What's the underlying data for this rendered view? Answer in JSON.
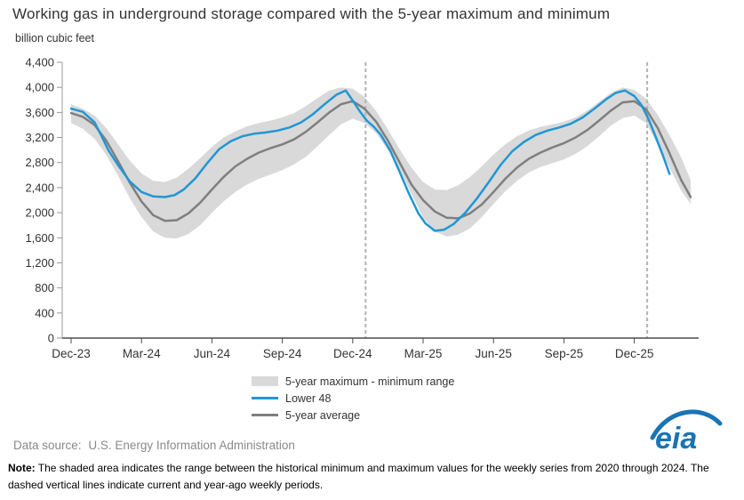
{
  "title": "Working gas in underground storage compared with the 5-year maximum and minimum",
  "unit_label": "billion cubic feet",
  "colors": {
    "lower48": "#2196d5",
    "average": "#7f7f7f",
    "band": "#d9d9d9",
    "dashed": "#b3b3b3",
    "axis_dark": "#4d4d4d",
    "axis_light": "#9a9a9a",
    "tick_text": "#333333",
    "logo_blue": "#1a74b4"
  },
  "chart_data": {
    "type": "area",
    "title": "Working gas in underground storage compared with the 5-year maximum and minimum",
    "xlabel": "",
    "ylabel": "billion cubic feet",
    "ylim": [
      0,
      4400
    ],
    "grid": false,
    "legend_position": "bottom",
    "x_axis": {
      "unit": "months since Dec-2023",
      "max_month": 26.4,
      "tick_months": [
        0,
        3,
        6,
        9,
        12,
        15,
        18,
        21,
        24
      ],
      "tick_labels": [
        "Dec-23",
        "Mar-24",
        "Jun-24",
        "Sep-24",
        "Dec-24",
        "Mar-25",
        "Jun-25",
        "Sep-25",
        "Dec-25"
      ]
    },
    "y_axis": {
      "tick_values": [
        0,
        400,
        800,
        1200,
        1600,
        2000,
        2400,
        2800,
        3200,
        3600,
        4000,
        4400
      ],
      "tick_labels": [
        "0",
        "400",
        "800",
        "1,200",
        "1,600",
        "2,000",
        "2,400",
        "2,800",
        "3,200",
        "3,600",
        "4,000",
        "4,400"
      ]
    },
    "dashed_vlines_months": [
      12.55,
      24.55
    ],
    "band": {
      "name": "5-year maximum - minimum range",
      "color": "#d9d9d9",
      "x": [
        0,
        0.5,
        1,
        1.5,
        2,
        2.5,
        3,
        3.5,
        4,
        4.5,
        5,
        5.5,
        6,
        6.5,
        7,
        7.5,
        8,
        8.5,
        9,
        9.5,
        10,
        10.5,
        11,
        11.5,
        12,
        12.5,
        13,
        13.5,
        14,
        14.5,
        15,
        15.5,
        16,
        16.5,
        17,
        17.5,
        18,
        18.5,
        19,
        19.5,
        20,
        20.5,
        21,
        21.5,
        22,
        22.5,
        23,
        23.5,
        24,
        24.5,
        25,
        25.5,
        26,
        26.4
      ],
      "max": [
        3730,
        3660,
        3550,
        3350,
        3090,
        2830,
        2630,
        2510,
        2490,
        2560,
        2700,
        2870,
        3050,
        3200,
        3300,
        3380,
        3430,
        3470,
        3520,
        3590,
        3700,
        3830,
        3950,
        4000,
        3980,
        3850,
        3620,
        3330,
        3010,
        2720,
        2490,
        2370,
        2360,
        2440,
        2570,
        2740,
        2930,
        3090,
        3220,
        3310,
        3370,
        3410,
        3450,
        3520,
        3630,
        3770,
        3910,
        4000,
        3960,
        3820,
        3560,
        3240,
        2880,
        2520
      ],
      "min": [
        3430,
        3340,
        3180,
        2920,
        2590,
        2230,
        1930,
        1700,
        1600,
        1590,
        1660,
        1800,
        2000,
        2180,
        2330,
        2450,
        2540,
        2610,
        2680,
        2770,
        2890,
        3060,
        3240,
        3410,
        3500,
        3430,
        3270,
        3000,
        2690,
        2300,
        1920,
        1700,
        1620,
        1650,
        1750,
        1930,
        2140,
        2340,
        2510,
        2640,
        2730,
        2790,
        2850,
        2940,
        3060,
        3220,
        3390,
        3510,
        3550,
        3430,
        3080,
        2720,
        2350,
        2140
      ]
    },
    "series": [
      {
        "name": "5-year average",
        "color": "#7f7f7f",
        "x": [
          0,
          0.5,
          1,
          1.5,
          2,
          2.5,
          3,
          3.5,
          4,
          4.5,
          5,
          5.5,
          6,
          6.5,
          7,
          7.5,
          8,
          8.5,
          9,
          9.5,
          10,
          10.5,
          11,
          11.5,
          12,
          12.5,
          13,
          13.5,
          14,
          14.5,
          15,
          15.5,
          16,
          16.5,
          17,
          17.5,
          18,
          18.5,
          19,
          19.5,
          20,
          20.5,
          21,
          21.5,
          22,
          22.5,
          23,
          23.5,
          24,
          24.5,
          25,
          25.5,
          26,
          26.4
        ],
        "values": [
          3590,
          3530,
          3400,
          3150,
          2820,
          2480,
          2180,
          1960,
          1870,
          1880,
          1990,
          2160,
          2370,
          2570,
          2740,
          2860,
          2960,
          3030,
          3090,
          3170,
          3290,
          3440,
          3600,
          3730,
          3780,
          3660,
          3450,
          3150,
          2800,
          2450,
          2200,
          2020,
          1920,
          1910,
          1990,
          2130,
          2330,
          2540,
          2720,
          2860,
          2960,
          3040,
          3110,
          3200,
          3320,
          3470,
          3630,
          3760,
          3780,
          3650,
          3350,
          2950,
          2520,
          2250
        ]
      },
      {
        "name": "Lower 48",
        "color": "#2196d5",
        "x": [
          0,
          0.5,
          1,
          1.3,
          1.6,
          2,
          2.5,
          3,
          3.5,
          4,
          4.4,
          4.8,
          5.3,
          5.8,
          6.3,
          6.8,
          7.3,
          7.8,
          8.3,
          8.8,
          9.3,
          9.8,
          10.3,
          10.8,
          11.3,
          11.7,
          12,
          12.3,
          12.6,
          12.9,
          13.2,
          13.6,
          14,
          14.4,
          14.8,
          15.1,
          15.5,
          15.9,
          16.3,
          16.8,
          17.3,
          17.8,
          18.3,
          18.8,
          19.3,
          19.8,
          20.3,
          20.8,
          21.3,
          21.8,
          22.3,
          22.8,
          23.2,
          23.6,
          24,
          24.3,
          24.6,
          24.9,
          25.2,
          25.5
        ],
        "values": [
          3660,
          3610,
          3440,
          3220,
          2990,
          2760,
          2500,
          2330,
          2260,
          2250,
          2280,
          2370,
          2550,
          2790,
          3010,
          3140,
          3220,
          3260,
          3280,
          3310,
          3360,
          3440,
          3570,
          3730,
          3880,
          3950,
          3790,
          3620,
          3470,
          3370,
          3240,
          2990,
          2650,
          2300,
          1990,
          1830,
          1710,
          1730,
          1820,
          2000,
          2230,
          2490,
          2760,
          2980,
          3130,
          3240,
          3310,
          3360,
          3420,
          3520,
          3660,
          3810,
          3910,
          3950,
          3860,
          3720,
          3500,
          3220,
          2930,
          2620
        ]
      }
    ]
  },
  "legend": {
    "items": [
      {
        "label": "5-year maximum - minimum range",
        "swatch": "band"
      },
      {
        "label": "Lower 48",
        "swatch": "line-blue"
      },
      {
        "label": "5-year average",
        "swatch": "line-gray"
      }
    ]
  },
  "footer": {
    "source_label": "Data source:",
    "source_text": "U.S. Energy Information Administration",
    "note_label": "Note:",
    "note_text": "The shaded area indicates the range between the historical minimum and maximum values for the weekly series from 2020 through 2024. The dashed vertical lines indicate current and year-ago weekly periods."
  },
  "logo_text": "eia"
}
